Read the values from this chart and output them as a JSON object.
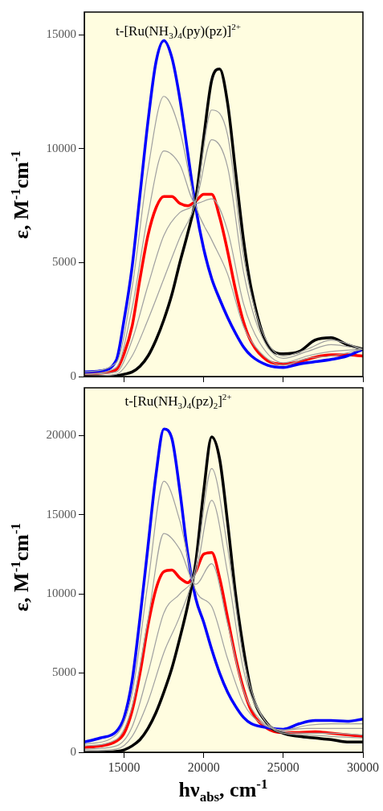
{
  "chart_data": [
    {
      "type": "line",
      "annotations": [
        "t-[Ru(NH$_{3}$)$_{4}$(py)(pz)]$^{2+}$"
      ],
      "ylabel": "ε, M$^{-1}$cm$^{-1}$",
      "x": [
        12500,
        13500,
        14500,
        15000,
        15500,
        16000,
        16500,
        17000,
        17500,
        18000,
        18500,
        19000,
        19500,
        20000,
        20500,
        21000,
        21500,
        22000,
        22500,
        23000,
        24000,
        25000,
        26000,
        27000,
        28000,
        29000,
        30000
      ],
      "series": [
        {
          "color": "#a0a0a0",
          "x": [
            12500,
            14500,
            15500,
            16500,
            17500,
            18500,
            19500,
            20500,
            21500,
            22500,
            23500,
            25000,
            26500,
            28000,
            30000
          ],
          "values": [
            200,
            600,
            3900,
            9100,
            12300,
            10800,
            7500,
            6000,
            4500,
            2200,
            1100,
            500,
            800,
            900,
            1200
          ]
        },
        {
          "color": "#a0a0a0",
          "x": [
            12500,
            14500,
            15500,
            16500,
            17500,
            18500,
            19500,
            20500,
            21500,
            22500,
            23500,
            25000,
            26500,
            28000,
            30000
          ],
          "values": [
            100,
            400,
            3000,
            7100,
            9900,
            9300,
            7600,
            7800,
            6400,
            3200,
            1500,
            600,
            900,
            1100,
            1200
          ]
        },
        {
          "color": "#a0a0a0",
          "x": [
            12500,
            14500,
            15500,
            16500,
            17500,
            18500,
            19500,
            20500,
            21500,
            22500,
            23500,
            25000,
            26500,
            28000,
            30000
          ],
          "values": [
            100,
            200,
            1600,
            4000,
            6200,
            7200,
            7700,
            10400,
            9200,
            4600,
            2000,
            800,
            1100,
            1400,
            1200
          ]
        },
        {
          "color": "#a0a0a0",
          "x": [
            12500,
            14500,
            15500,
            16500,
            17500,
            18500,
            19500,
            20500,
            21500,
            22500,
            23500,
            25000,
            26500,
            28000,
            30000
          ],
          "values": [
            0,
            100,
            900,
            2500,
            4300,
            6100,
            7700,
            11700,
            10600,
            5300,
            2300,
            900,
            1200,
            1600,
            1200
          ]
        },
        {
          "color": "#000000",
          "values": [
            0,
            0,
            30,
            100,
            200,
            450,
            900,
            1600,
            2500,
            3600,
            5000,
            6300,
            7800,
            10500,
            13000,
            13500,
            12000,
            9000,
            6000,
            3800,
            1400,
            1000,
            1100,
            1600,
            1700,
            1400,
            1200
          ]
        },
        {
          "color": "#0000ff",
          "values": [
            200,
            250,
            700,
            2500,
            4800,
            8000,
            11200,
            13800,
            14750,
            14000,
            12200,
            9800,
            7400,
            5600,
            4300,
            3400,
            2600,
            1900,
            1300,
            900,
            500,
            400,
            550,
            650,
            750,
            900,
            1200
          ]
        },
        {
          "color": "#ff0000",
          "values": [
            100,
            150,
            300,
            1000,
            2200,
            4300,
            6200,
            7400,
            7900,
            7900,
            7600,
            7500,
            7700,
            8000,
            8000,
            7000,
            5500,
            3800,
            2400,
            1500,
            700,
            550,
            650,
            850,
            950,
            950,
            900
          ]
        }
      ],
      "xlim": [
        12500,
        30000
      ],
      "xticks": [
        {
          "value": 15000,
          "label": null
        },
        {
          "value": 20000,
          "label": null
        },
        {
          "value": 25000,
          "label": null
        },
        {
          "value": 30000,
          "label": null
        }
      ],
      "ylim": [
        0,
        16000
      ],
      "yticks": [
        0,
        5000,
        10000,
        15000
      ],
      "tick_labels": "y",
      "marker": "none"
    },
    {
      "type": "line",
      "annotations": [
        "t-[Ru(NH$_{3}$)$_{4}$(pz)$_{2}$]$^{2+}$"
      ],
      "ylabel": "ε, M$^{-1}$cm$^{-1}$",
      "xlabel": "hν$_{abs}$, cm$^{-1}$",
      "x": [
        12500,
        13500,
        14500,
        15000,
        15500,
        16000,
        16500,
        17000,
        17500,
        18000,
        18500,
        19000,
        19500,
        20000,
        20500,
        21000,
        21500,
        22000,
        22500,
        23000,
        24000,
        25000,
        26000,
        27000,
        28000,
        29000,
        30000
      ],
      "series": [
        {
          "color": "#a0a0a0",
          "x": [
            12500,
            14500,
            15500,
            16500,
            17500,
            18500,
            19500,
            20500,
            21500,
            22500,
            23500,
            25000,
            26500,
            28000,
            30000
          ],
          "values": [
            500,
            1100,
            3700,
            10700,
            17100,
            14600,
            10200,
            9200,
            5900,
            3100,
            1900,
            1400,
            1700,
            1800,
            1800
          ]
        },
        {
          "color": "#a0a0a0",
          "x": [
            12500,
            14500,
            15500,
            16500,
            17500,
            18500,
            19500,
            20500,
            21500,
            22500,
            23500,
            25000,
            26500,
            28000,
            30000
          ],
          "values": [
            400,
            800,
            2900,
            8400,
            13800,
            12800,
            10600,
            11900,
            8100,
            3900,
            2100,
            1400,
            1500,
            1500,
            1500
          ]
        },
        {
          "color": "#a0a0a0",
          "x": [
            12500,
            14500,
            15500,
            16500,
            17500,
            18500,
            19500,
            20500,
            21500,
            22500,
            23500,
            25000,
            26500,
            28000,
            30000
          ],
          "values": [
            200,
            400,
            1600,
            5000,
            8800,
            10000,
            11300,
            15900,
            11300,
            5200,
            2500,
            1300,
            1200,
            1200,
            1100
          ]
        },
        {
          "color": "#a0a0a0",
          "x": [
            12500,
            14500,
            15500,
            16500,
            17500,
            18500,
            19500,
            20500,
            21500,
            22500,
            23500,
            25000,
            26500,
            28000,
            30000
          ],
          "values": [
            100,
            200,
            1000,
            3200,
            6300,
            8600,
            11700,
            17900,
            12900,
            5900,
            2600,
            1200,
            1100,
            1000,
            900
          ]
        },
        {
          "color": "#000000",
          "values": [
            0,
            0,
            50,
            150,
            400,
            800,
            1500,
            2500,
            3800,
            5300,
            7200,
            9300,
            12000,
            16500,
            19900,
            18500,
            14500,
            10000,
            6500,
            3800,
            1800,
            1200,
            1000,
            900,
            800,
            650,
            650
          ]
        },
        {
          "color": "#0000ff",
          "values": [
            650,
            900,
            1300,
            2200,
            4500,
            8500,
            13000,
            17500,
            20400,
            19800,
            16500,
            12500,
            9700,
            8200,
            6500,
            5000,
            3800,
            2900,
            2200,
            1800,
            1550,
            1450,
            1800,
            2000,
            2000,
            1950,
            2100
          ]
        },
        {
          "color": "#ff0000",
          "values": [
            300,
            400,
            700,
            1200,
            2600,
            5000,
            8000,
            10300,
            11400,
            11500,
            11000,
            10700,
            11400,
            12500,
            12600,
            11000,
            8500,
            6000,
            4000,
            2600,
            1500,
            1250,
            1250,
            1300,
            1200,
            1100,
            1000
          ]
        }
      ],
      "xlim": [
        12500,
        30000
      ],
      "xticks": [
        15000,
        20000,
        25000,
        30000
      ],
      "ylim": [
        0,
        23000
      ],
      "yticks": [
        0,
        5000,
        10000,
        15000,
        20000
      ],
      "marker": "none"
    }
  ]
}
